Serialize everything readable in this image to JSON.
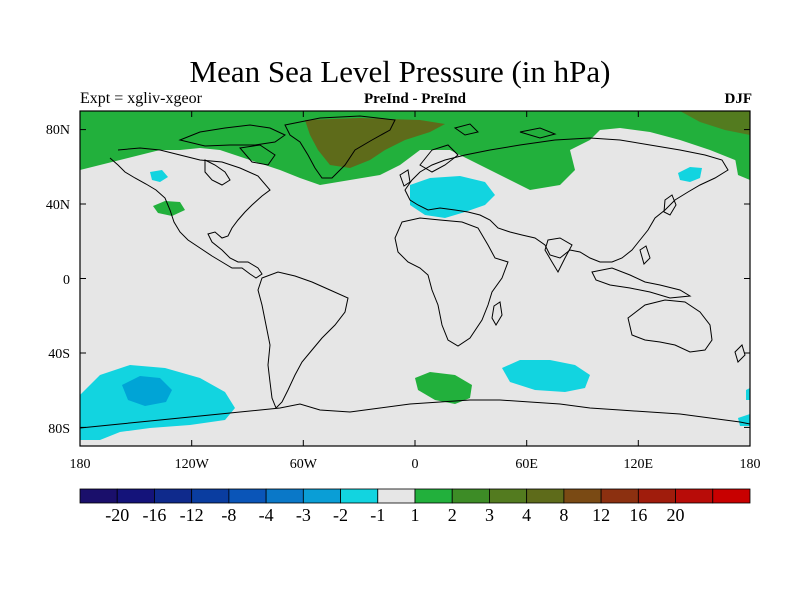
{
  "title": "Mean Sea Level Pressure (in hPa)",
  "subtitle_left": "Expt = xgliv-xgeor",
  "subtitle_center": "PreInd - PreInd",
  "subtitle_right": "DJF",
  "lat_ticks": [
    "80N",
    "40N",
    "0",
    "40S",
    "80S"
  ],
  "lon_ticks": [
    "180",
    "120W",
    "60W",
    "0",
    "60E",
    "120E",
    "180"
  ],
  "colors": {
    "background_field": "#e6e6e6",
    "neg_1_to_neg_2": "#12d4e0",
    "neg_2_to_neg_3": "#00a4d6",
    "pos_1_to_2": "#22b03c",
    "pos_3_to_4": "#537b1f",
    "pos_4_to_8": "#5e6b1a",
    "coastline": "#000000"
  },
  "colorbar": {
    "colors": [
      "#1a0f6b",
      "#14137a",
      "#0f2a8c",
      "#0a3da0",
      "#0a55b8",
      "#0a78c8",
      "#0a9ed6",
      "#12d4e0",
      "#e6e6e6",
      "#22b03c",
      "#3d8c26",
      "#537b1f",
      "#5e6b1a",
      "#7a4a14",
      "#8c3010",
      "#a01c0c",
      "#b80c08",
      "#c80000"
    ],
    "labels": [
      "-20",
      "-16",
      "-12",
      "-8",
      "-4",
      "-3",
      "-2",
      "-1",
      "1",
      "2",
      "3",
      "4",
      "8",
      "12",
      "16",
      "20"
    ]
  }
}
